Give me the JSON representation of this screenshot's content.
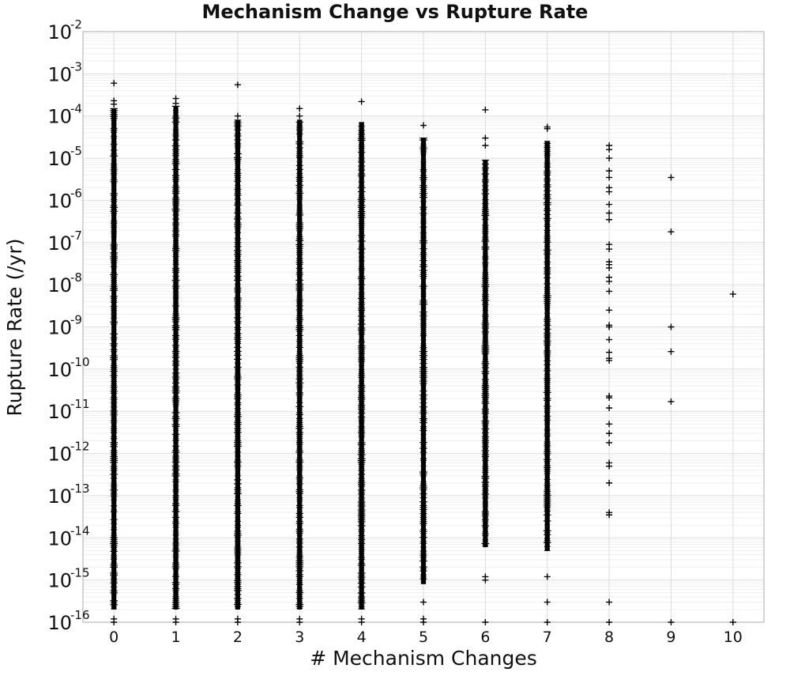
{
  "chart_data": {
    "type": "scatter",
    "title": "Mechanism Change vs Rupture Rate",
    "xlabel": "# Mechanism Changes",
    "ylabel": "Rupture Rate (/yr)",
    "xlim": [
      -0.5,
      10.5
    ],
    "ylim": [
      1e-16,
      0.01
    ],
    "yscale": "log",
    "grid": true,
    "marker": "plus",
    "marker_color": "#000000",
    "x_ticks": [
      0,
      1,
      2,
      3,
      4,
      5,
      6,
      7,
      8,
      9,
      10
    ],
    "y_ticks": [
      {
        "base": "10",
        "exp": "-16"
      },
      {
        "base": "10",
        "exp": "-15"
      },
      {
        "base": "10",
        "exp": "-14"
      },
      {
        "base": "10",
        "exp": "-13"
      },
      {
        "base": "10",
        "exp": "-12"
      },
      {
        "base": "10",
        "exp": "-11"
      },
      {
        "base": "10",
        "exp": "-10"
      },
      {
        "base": "10",
        "exp": "-9"
      },
      {
        "base": "10",
        "exp": "-8"
      },
      {
        "base": "10",
        "exp": "-7"
      },
      {
        "base": "10",
        "exp": "-6"
      },
      {
        "base": "10",
        "exp": "-5"
      },
      {
        "base": "10",
        "exp": "-4"
      },
      {
        "base": "10",
        "exp": "-3"
      },
      {
        "base": "10",
        "exp": "-2"
      }
    ],
    "columns": [
      {
        "x": 0,
        "dense_range": [
          2e-16,
          0.00015
        ],
        "outliers": [
          0.0006,
          0.00023,
          0.00019,
          1.2e-16,
          1e-16
        ]
      },
      {
        "x": 1,
        "dense_range": [
          2e-16,
          0.00017
        ],
        "outliers": [
          0.00026,
          0.0002,
          1.2e-16,
          1e-16
        ]
      },
      {
        "x": 2,
        "dense_range": [
          2e-16,
          8e-05
        ],
        "outliers": [
          0.00055,
          0.0001,
          1.2e-16,
          1e-16
        ]
      },
      {
        "x": 3,
        "dense_range": [
          2e-16,
          8e-05
        ],
        "outliers": [
          0.00015,
          0.0001,
          1.2e-16,
          1e-16
        ]
      },
      {
        "x": 4,
        "dense_range": [
          2e-16,
          7e-05
        ],
        "outliers": [
          0.00022,
          1.2e-16,
          1e-16
        ]
      },
      {
        "x": 5,
        "dense_range": [
          8e-16,
          3e-05
        ],
        "outliers": [
          6e-05,
          3e-16,
          1.2e-16,
          1e-16
        ]
      },
      {
        "x": 6,
        "dense_range": [
          6e-15,
          9e-06
        ],
        "outliers": [
          0.00014,
          3e-05,
          2e-05,
          1.2e-15,
          1e-15,
          1e-16
        ]
      },
      {
        "x": 7,
        "dense_range": [
          5e-15,
          2.5e-05
        ],
        "outliers": [
          5.5e-05,
          5e-05,
          1.2e-15,
          3e-16,
          1e-16
        ]
      },
      {
        "x": 8,
        "dense_range": null,
        "outliers": [
          2e-05,
          1.6e-05,
          1e-05,
          5e-06,
          3.5e-06,
          2e-06,
          1.6e-06,
          8e-07,
          5e-07,
          3.5e-07,
          9e-08,
          7e-08,
          3.5e-08,
          3e-08,
          2.5e-08,
          1.5e-08,
          1.2e-08,
          7e-09,
          2.5e-09,
          1.1e-09,
          1e-09,
          5e-10,
          2.5e-10,
          1.8e-10,
          1.6e-10,
          2.3e-11,
          2.1e-11,
          1.2e-11,
          5e-12,
          3e-12,
          1.8e-12,
          6e-13,
          5e-13,
          2e-13,
          4e-14,
          3.5e-14,
          3e-16,
          1e-16
        ]
      },
      {
        "x": 9,
        "dense_range": null,
        "outliers": [
          3.5e-06,
          1.8e-07,
          1e-09,
          2.6e-10,
          1.7e-11,
          1e-16
        ]
      },
      {
        "x": 10,
        "dense_range": null,
        "outliers": [
          6e-09,
          1e-16
        ]
      }
    ]
  }
}
